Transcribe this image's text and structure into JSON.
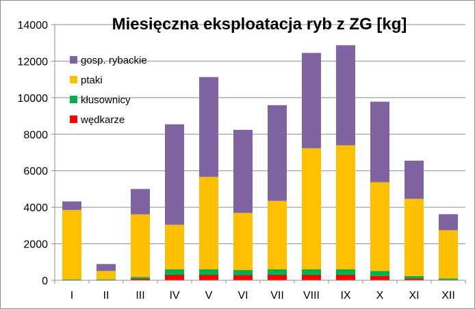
{
  "chart_data": {
    "type": "bar",
    "stacked": true,
    "title": "Miesięczna eksploatacja ryb z ZG [kg]",
    "xlabel": "",
    "ylabel": "",
    "categories": [
      "I",
      "II",
      "III",
      "IV",
      "V",
      "VI",
      "VII",
      "VIII",
      "IX",
      "X",
      "XI",
      "XII"
    ],
    "ylim": [
      0,
      14000
    ],
    "yticks": [
      0,
      2000,
      4000,
      6000,
      8000,
      10000,
      12000,
      14000
    ],
    "grid": "horizontal",
    "legend_position": "top-left",
    "series": [
      {
        "name": "wędkarze",
        "color": "#ff0000",
        "values": [
          10,
          10,
          90,
          300,
          300,
          280,
          300,
          300,
          300,
          230,
          100,
          30
        ]
      },
      {
        "name": "kłusownicy",
        "color": "#00b050",
        "values": [
          40,
          40,
          90,
          300,
          300,
          280,
          300,
          300,
          300,
          280,
          130,
          70
        ]
      },
      {
        "name": "ptaki",
        "color": "#ffc000",
        "values": [
          3800,
          460,
          3430,
          2440,
          5060,
          3130,
          3750,
          6630,
          6790,
          4860,
          4230,
          2640
        ]
      },
      {
        "name": "gosp. rybackie",
        "color": "#8064a2",
        "values": [
          470,
          380,
          1390,
          5500,
          5470,
          4550,
          5240,
          5220,
          5480,
          4410,
          2090,
          880
        ]
      }
    ],
    "legend_order": [
      "gosp. rybackie",
      "ptaki",
      "kłusownicy",
      "wędkarze"
    ]
  }
}
